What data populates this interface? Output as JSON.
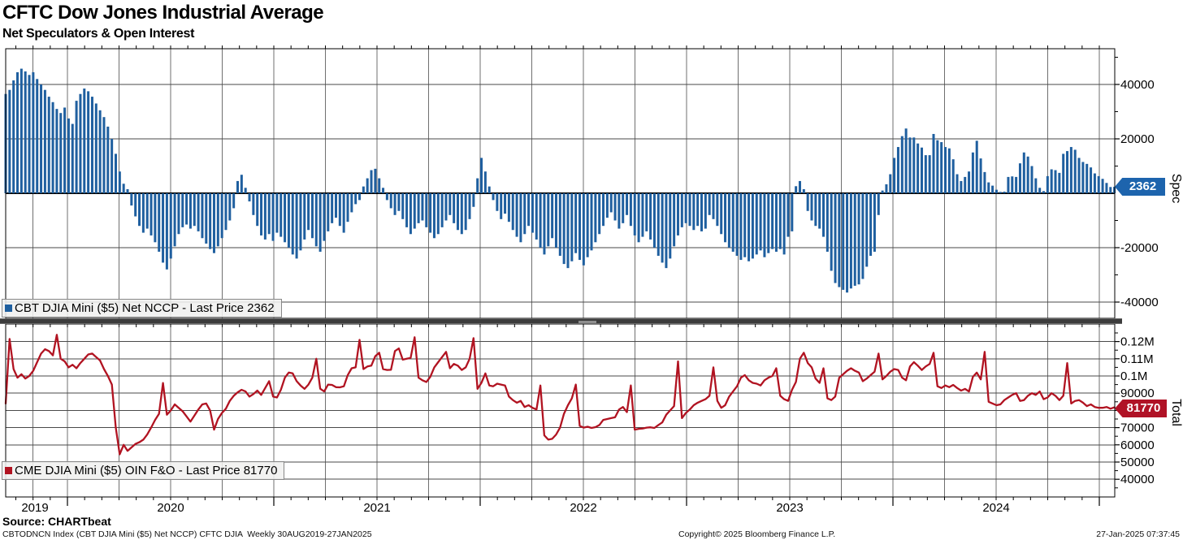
{
  "header": {
    "title": "CFTC Dow Jones Industrial Average",
    "subtitle": "Net Speculators & Open Interest"
  },
  "top_panel": {
    "legend_label": "CBT DJIA Mini ($5) Net NCCP - Last Price 2362",
    "badge": "2362",
    "axis_label": "Spec",
    "y_ticks": [
      {
        "label": "40000",
        "value": 40000
      },
      {
        "label": "20000",
        "value": 20000
      },
      {
        "label": "-20000",
        "value": -20000
      },
      {
        "label": "-40000",
        "value": -40000
      }
    ]
  },
  "bottom_panel": {
    "legend_label": "CME DJIA Mini ($5) OIN F&O - Last Price 81770",
    "badge": "81770",
    "axis_label": "Total",
    "y_ticks": [
      {
        "label": "0.12M",
        "value": 120000
      },
      {
        "label": "0.11M",
        "value": 110000
      },
      {
        "label": "0.1M",
        "value": 100000
      },
      {
        "label": "90000",
        "value": 90000
      },
      {
        "label": "70000",
        "value": 70000
      },
      {
        "label": "60000",
        "value": 60000
      },
      {
        "label": "50000",
        "value": 50000
      },
      {
        "label": "40000",
        "value": 40000
      }
    ]
  },
  "x_axis": {
    "year_labels": [
      "2019",
      "2020",
      "2021",
      "2022",
      "2023",
      "2024"
    ]
  },
  "footer": {
    "source": "Source: CHARTbeat",
    "security_info": "CBTODNCN Index (CBT DJIA Mini ($5) Net NCCP) CFTC DJIA  Weekly 30AUG2019-27JAN2025",
    "copyright": "Copyright© 2025 Bloomberg Finance L.P.",
    "timestamp": "27-Jan-2025 07:37:45"
  },
  "colors": {
    "bar_blue": "#1f5f9f",
    "badge_blue": "#1d64ad",
    "line_red": "#b11321",
    "badge_red": "#b01226",
    "gridline": "#6f6f6f",
    "hgridline": "#4a4a4a",
    "axis_black": "#000000",
    "divider": "#3c3c3c"
  },
  "chart_data": [
    {
      "type": "bar",
      "name": "CBT DJIA Mini ($5) Net NCCP",
      "panel": "Spec",
      "frequency": "Weekly",
      "x_range": "30AUG2019-27JAN2025",
      "last_price": 2362,
      "ylim": [
        -46000,
        53000
      ],
      "values": [
        36500,
        38000,
        41500,
        44500,
        45800,
        44800,
        43500,
        44500,
        42000,
        40000,
        38000,
        35500,
        33500,
        31000,
        29500,
        31500,
        27500,
        25500,
        34000,
        36500,
        38500,
        37500,
        35500,
        33000,
        30500,
        28000,
        24500,
        20000,
        14500,
        8000,
        3500,
        1500,
        -4500,
        -8500,
        -12000,
        -14500,
        -13000,
        -15500,
        -18000,
        -21500,
        -25500,
        -28000,
        -24000,
        -19500,
        -15000,
        -12500,
        -11500,
        -13000,
        -12000,
        -14000,
        -16500,
        -18500,
        -20500,
        -22000,
        -19500,
        -16500,
        -13500,
        -10000,
        -5500,
        4500,
        6800,
        2000,
        -3000,
        -8000,
        -12000,
        -15500,
        -17000,
        -15000,
        -17500,
        -14500,
        -16000,
        -18000,
        -20000,
        -22500,
        -24000,
        -21000,
        -17000,
        -13500,
        -16500,
        -19500,
        -21500,
        -17500,
        -14000,
        -11000,
        -9000,
        -12000,
        -14500,
        -10500,
        -7000,
        -4000,
        -2500,
        2500,
        5500,
        8500,
        9000,
        5500,
        2000,
        -2500,
        -5500,
        -8000,
        -6500,
        -9500,
        -12500,
        -15000,
        -13000,
        -11000,
        -10000,
        -12500,
        -14500,
        -16500,
        -15000,
        -12500,
        -10000,
        -8000,
        -11000,
        -13500,
        -15000,
        -13500,
        -9500,
        -5000,
        5500,
        13000,
        8000,
        2500,
        -2500,
        -6500,
        -9500,
        -7500,
        -10500,
        -13500,
        -16000,
        -18000,
        -15000,
        -12000,
        -14500,
        -17000,
        -20000,
        -22500,
        -19500,
        -16500,
        -20000,
        -23000,
        -26000,
        -27500,
        -25000,
        -22000,
        -24500,
        -26500,
        -23500,
        -21000,
        -18000,
        -15000,
        -12000,
        -9000,
        -7000,
        -10000,
        -13000,
        -11000,
        -8000,
        -12000,
        -15500,
        -18000,
        -16000,
        -14000,
        -17000,
        -20000,
        -23000,
        -25500,
        -27500,
        -24000,
        -19500,
        -15500,
        -12500,
        -11000,
        -12000,
        -13500,
        -12000,
        -14000,
        -13000,
        -8000,
        -9500,
        -12000,
        -15000,
        -18000,
        -20000,
        -21500,
        -23000,
        -24500,
        -23500,
        -25000,
        -24000,
        -22500,
        -21000,
        -23500,
        -22000,
        -20500,
        -21500,
        -20500,
        -22500,
        -16000,
        -14000,
        2600,
        4500,
        1500,
        -6500,
        -10000,
        -12000,
        -13000,
        -16000,
        -21500,
        -28500,
        -33000,
        -34500,
        -35500,
        -36500,
        -35000,
        -34000,
        -33500,
        -31500,
        -27000,
        -23000,
        -21500,
        -8000,
        1000,
        3300,
        7000,
        13000,
        17000,
        21000,
        23800,
        20500,
        20500,
        18300,
        16800,
        14000,
        14000,
        21800,
        19500,
        18800,
        17000,
        16500,
        12500,
        7000,
        4500,
        6000,
        8000,
        15000,
        19300,
        12800,
        7800,
        4000,
        2800,
        1300,
        500,
        600,
        6000,
        6200,
        6000,
        11000,
        15000,
        13500,
        10000,
        5500,
        2000,
        800,
        6300,
        8800,
        8500,
        7500,
        14500,
        15500,
        17000,
        16000,
        13000,
        11500,
        10800,
        9500,
        7300,
        6300,
        5300,
        3800,
        2300,
        2362
      ]
    },
    {
      "type": "line",
      "name": "CME DJIA Mini ($5) OIN F&O",
      "panel": "Total",
      "frequency": "Weekly",
      "x_range": "30AUG2019-27JAN2025",
      "last_price": 81770,
      "ylim": [
        30000,
        128000
      ],
      "values": [
        84000,
        121500,
        104000,
        99000,
        101000,
        98500,
        100000,
        103000,
        108000,
        113000,
        115500,
        114500,
        112000,
        123900,
        110000,
        108500,
        105000,
        106500,
        104500,
        107500,
        110000,
        112500,
        113000,
        111000,
        109000,
        104000,
        100000,
        95000,
        70000,
        54500,
        60000,
        56500,
        58500,
        60500,
        61500,
        63000,
        66000,
        70000,
        74500,
        78000,
        95900,
        77500,
        80000,
        83500,
        81500,
        79500,
        76500,
        73500,
        77000,
        80500,
        83500,
        84000,
        80000,
        68800,
        75000,
        78500,
        81000,
        85500,
        88500,
        90500,
        92000,
        91000,
        88000,
        89500,
        91500,
        89000,
        93000,
        97000,
        88000,
        87500,
        92000,
        99000,
        102000,
        101500,
        97000,
        94500,
        92500,
        95000,
        99000,
        110000,
        92600,
        91000,
        95000,
        94800,
        93500,
        93400,
        94000,
        100500,
        104500,
        105000,
        121000,
        104000,
        105500,
        106000,
        111500,
        113500,
        104000,
        103500,
        103600,
        114500,
        116000,
        109500,
        110000,
        110500,
        122500,
        99000,
        97500,
        96500,
        99500,
        105000,
        108000,
        111000,
        114000,
        104500,
        107000,
        106000,
        103500,
        105000,
        110000,
        122000,
        92500,
        96000,
        101500,
        94500,
        94000,
        95500,
        95000,
        94500,
        88000,
        86000,
        84500,
        85500,
        82000,
        83000,
        81500,
        80500,
        94500,
        65500,
        63000,
        63500,
        66000,
        70000,
        78000,
        83000,
        87000,
        95000,
        71000,
        70000,
        70500,
        69800,
        70300,
        71500,
        74500,
        75000,
        75500,
        76000,
        80500,
        82000,
        79000,
        94500,
        68800,
        69300,
        69500,
        70000,
        70200,
        69800,
        71500,
        73000,
        77500,
        80000,
        82500,
        108500,
        75500,
        78500,
        80500,
        83000,
        84500,
        85500,
        86500,
        88500,
        105000,
        85500,
        81500,
        83000,
        88000,
        91000,
        94000,
        99000,
        100500,
        97500,
        96000,
        95500,
        94500,
        97500,
        99000,
        100000,
        104500,
        88500,
        86500,
        85500,
        92000,
        96500,
        110000,
        113500,
        107500,
        105000,
        98500,
        96000,
        104500,
        87000,
        86000,
        88000,
        99000,
        101000,
        103000,
        104500,
        103000,
        102000,
        97000,
        98500,
        100500,
        102500,
        113000,
        98000,
        100000,
        102500,
        104000,
        103500,
        99000,
        97500,
        105500,
        108000,
        106000,
        103500,
        105500,
        107000,
        113500,
        94000,
        93000,
        94500,
        93500,
        94800,
        93000,
        91500,
        92500,
        91000,
        99500,
        102000,
        98000,
        114000,
        85000,
        84000,
        83000,
        83500,
        86000,
        87500,
        89000,
        90000,
        85500,
        86000,
        88500,
        90000,
        89000,
        91000,
        86500,
        87500,
        90000,
        88500,
        86000,
        88500,
        107500,
        84000,
        85500,
        86000,
        84500,
        82500,
        83500,
        82000,
        81500,
        81500,
        82000,
        81000,
        81770
      ]
    }
  ]
}
